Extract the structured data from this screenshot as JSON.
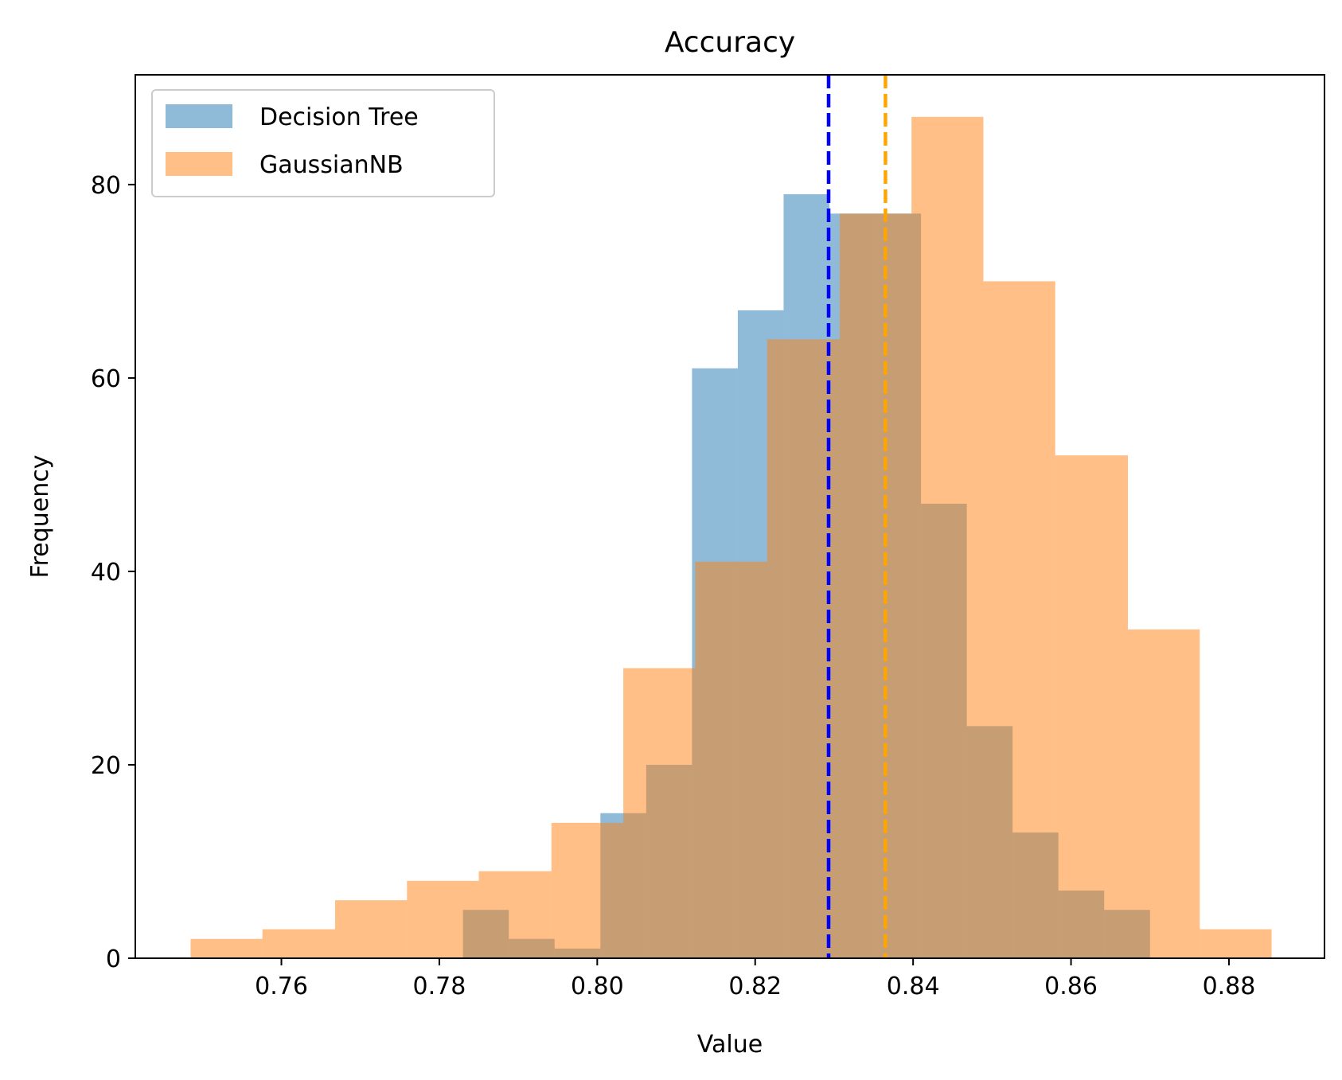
{
  "chart_data": {
    "type": "bar",
    "title": "Accuracy",
    "xlabel": "Value",
    "ylabel": "Frequency",
    "xlim": [
      0.7415,
      0.8921
    ],
    "ylim": [
      0,
      91.35
    ],
    "x_ticks": [
      0.76,
      0.78,
      0.8,
      0.82,
      0.84,
      0.86,
      0.88
    ],
    "x_tick_labels": [
      "0.76",
      "0.78",
      "0.80",
      "0.82",
      "0.84",
      "0.86",
      "0.88"
    ],
    "y_ticks": [
      0,
      20,
      40,
      60,
      80
    ],
    "y_tick_labels": [
      "0",
      "20",
      "40",
      "60",
      "80"
    ],
    "legend_position": "upper-left",
    "series": [
      {
        "name": "Decision Tree",
        "color": "#1f77b4",
        "opacity": 0.5,
        "bin_edges": [
          0.783,
          0.7888,
          0.7946,
          0.8004,
          0.8062,
          0.812,
          0.8178,
          0.8236,
          0.8294,
          0.8352,
          0.841,
          0.8468,
          0.8526,
          0.8584,
          0.8642,
          0.87
        ],
        "counts": [
          5,
          2,
          1,
          15,
          20,
          61,
          67,
          79,
          77,
          77,
          47,
          24,
          13,
          7,
          5
        ]
      },
      {
        "name": "GaussianNB",
        "color": "#ff7f0e",
        "opacity": 0.5,
        "bin_edges": [
          0.7485,
          0.7576,
          0.7668,
          0.7759,
          0.785,
          0.7942,
          0.8033,
          0.8124,
          0.8215,
          0.8307,
          0.8398,
          0.8489,
          0.858,
          0.8672,
          0.8763,
          0.8854
        ],
        "counts": [
          2,
          3,
          6,
          8,
          9,
          14,
          30,
          41,
          64,
          77,
          87,
          70,
          52,
          34,
          3
        ]
      }
    ],
    "mean_lines": [
      {
        "series": "Decision Tree",
        "x": 0.8293,
        "color": "#0000ff",
        "style": "dashed"
      },
      {
        "series": "GaussianNB",
        "x": 0.8365,
        "color": "#ffa500",
        "style": "dashed"
      }
    ]
  }
}
